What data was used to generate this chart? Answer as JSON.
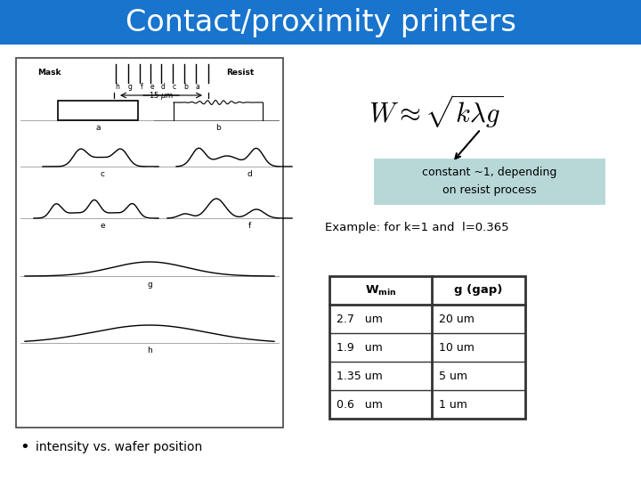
{
  "title": "Contact/proximity printers",
  "title_bg": "#1874CD",
  "title_color": "#FFFFFF",
  "title_fontsize": 24,
  "formula": "$W \\approx \\sqrt{k\\lambda g}$",
  "annotation_box_color": "#B8D8D8",
  "annotation_text": "constant ~1, depending\non resist process",
  "example_text": "Example: for k=1 and  l=0.365",
  "table_headers": [
    "$\\mathbf{W_{min}}$",
    "g (gap)"
  ],
  "table_data": [
    [
      "2.7   um",
      "20 um"
    ],
    [
      "1.9   um",
      "10 um"
    ],
    [
      "1.35 um",
      "5 um"
    ],
    [
      "0.6   um",
      "1 um"
    ]
  ],
  "bullet_text": "intensity vs. wafer position",
  "bg_color": "#FFFFFF"
}
